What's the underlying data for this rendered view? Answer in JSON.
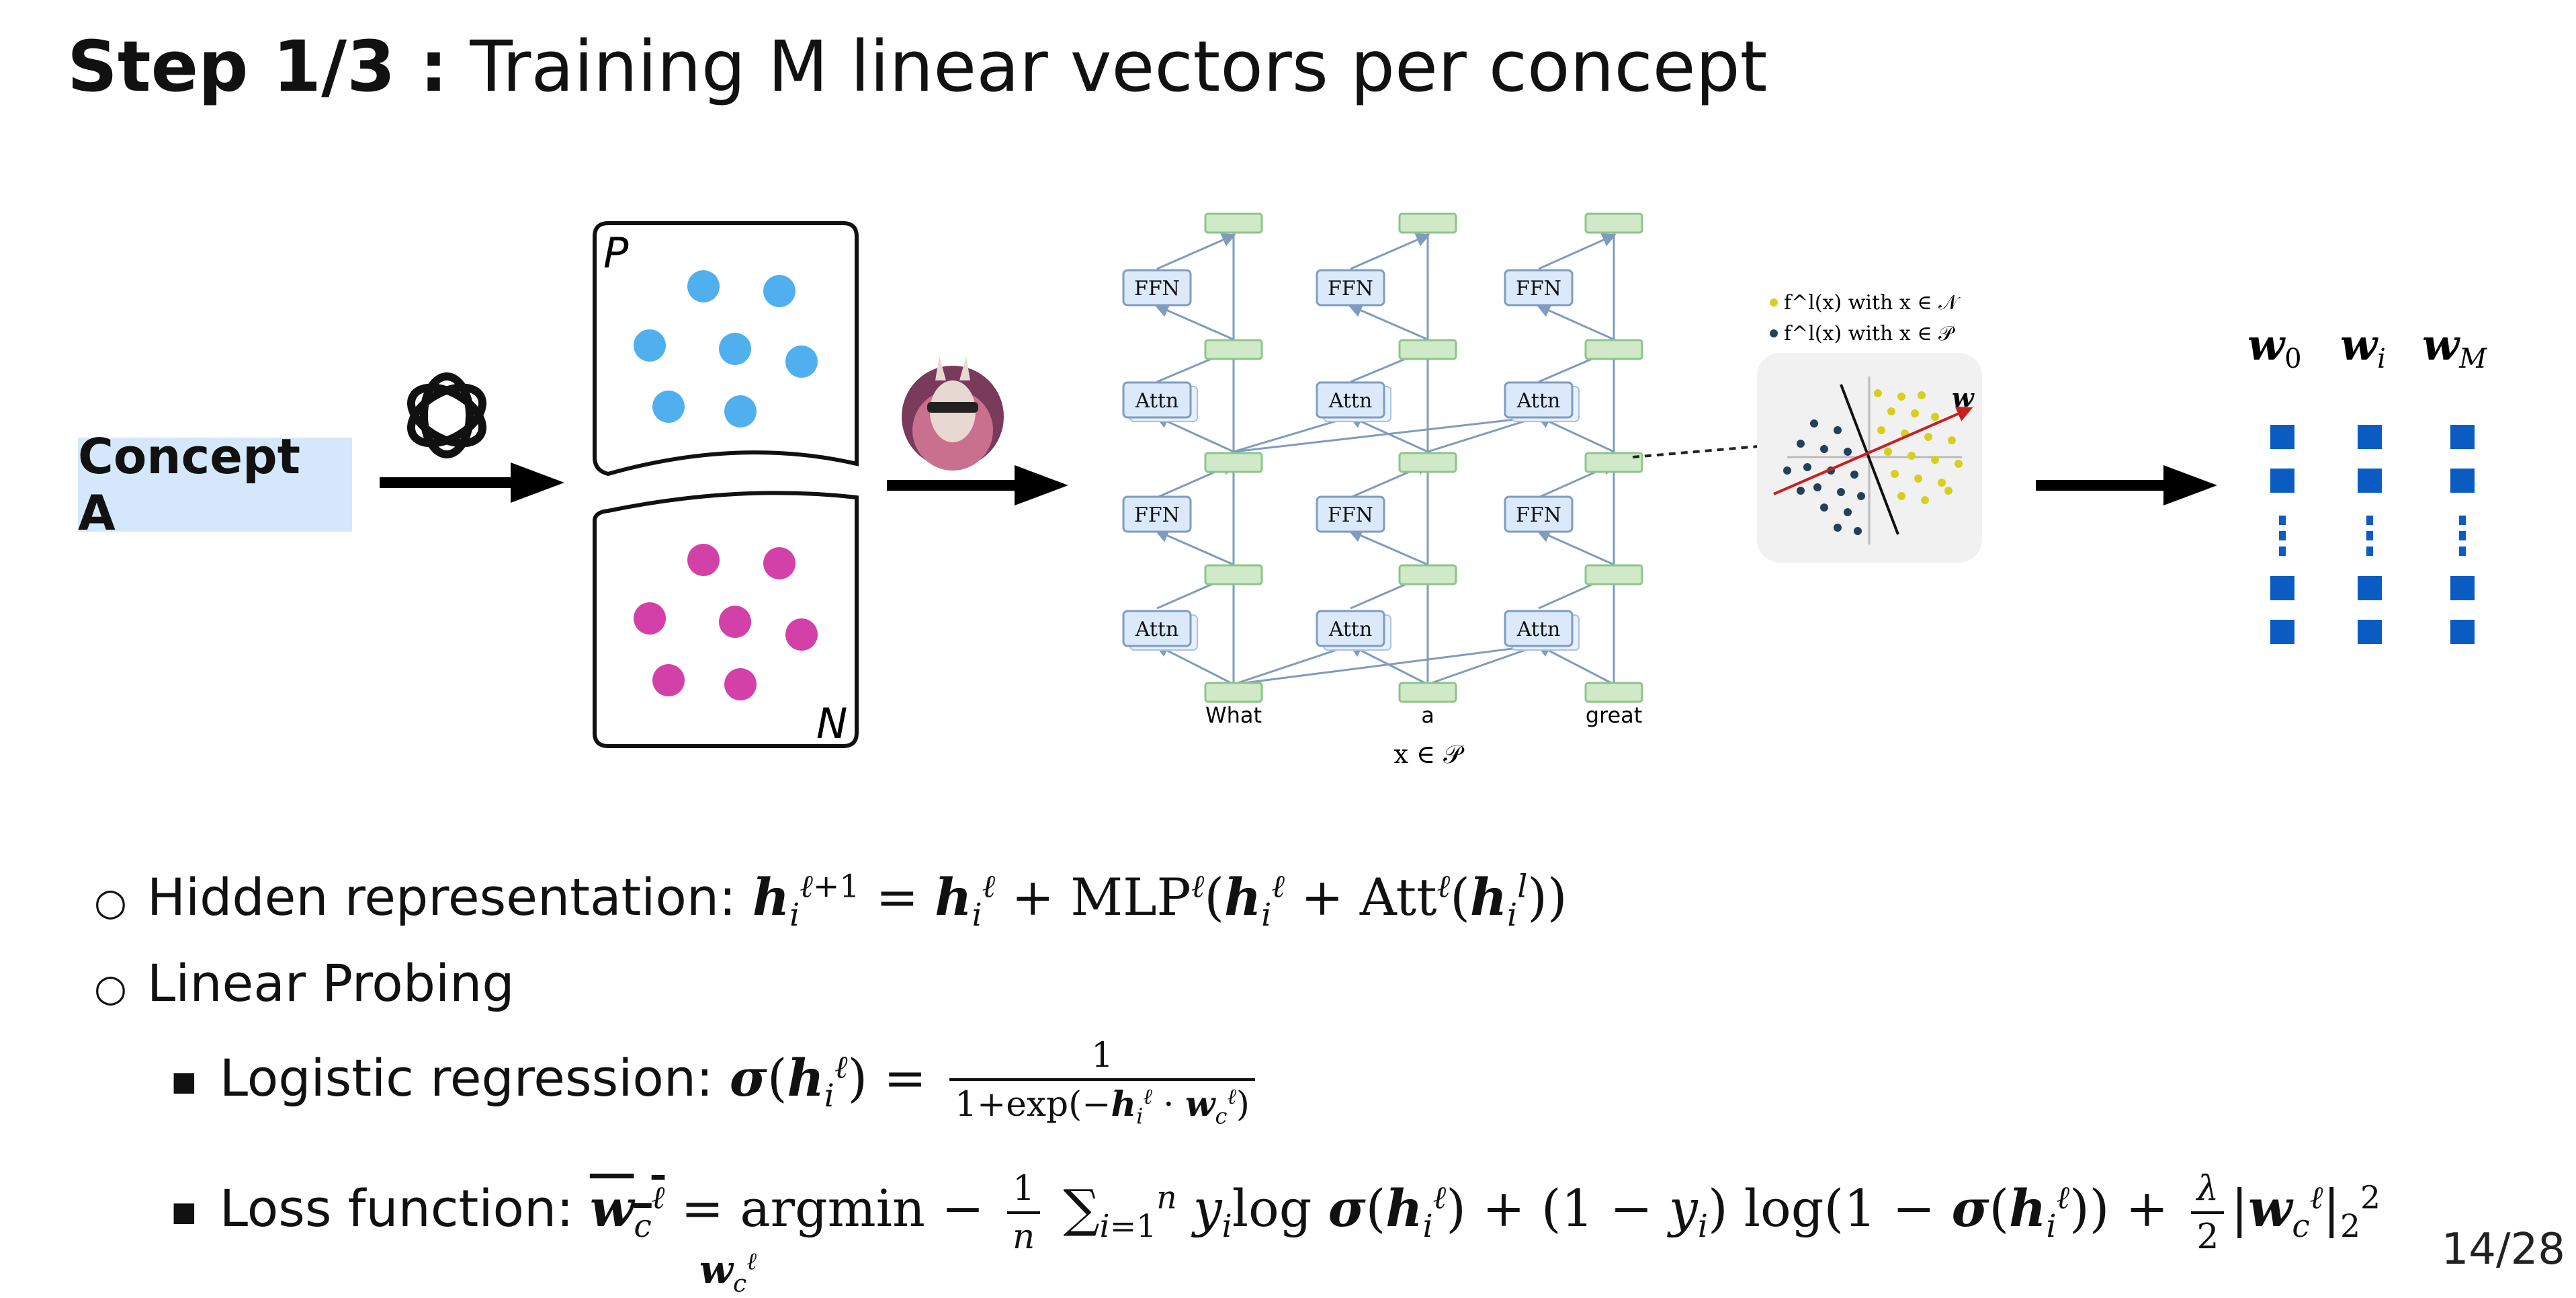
{
  "title": {
    "bold": "Step 1/3 :",
    "rest": "Training M linear vectors per concept"
  },
  "concept_label": "Concept A",
  "set_labels": {
    "positive": "P",
    "negative": "N"
  },
  "colors": {
    "positive_dot": "#50b0ef",
    "negative_dot": "#d240a8",
    "concept_bg": "#d5e8fb",
    "block_fill": "#dbe9fb",
    "node_fill": "#cfe9c9",
    "vector_fill": "#0b5cc2",
    "probe_yellow": "#d6cf1e",
    "probe_dark": "#23405a",
    "probe_line": "#c8201e"
  },
  "icons": {
    "generator": "openai-logo-icon",
    "model": "llama-avatar-icon"
  },
  "transformer": {
    "ffn_label": "FFN",
    "attn_label": "Attn",
    "tokens": [
      "What",
      "a",
      "great"
    ],
    "input_caption": "x ∈ 𝒫"
  },
  "probe": {
    "legend_negative": "f^l(x) with x ∈ 𝒩",
    "legend_positive": "f^l(x) with x ∈ 𝒫",
    "vector_label": "w"
  },
  "vectors": {
    "labels": [
      "w_0",
      "w_i",
      "w_M"
    ]
  },
  "bullets": {
    "hidden": "Hidden representation:",
    "probing": "Linear Probing",
    "logistic": "Logistic regression:",
    "loss": "Loss function:"
  },
  "page": "14/28"
}
